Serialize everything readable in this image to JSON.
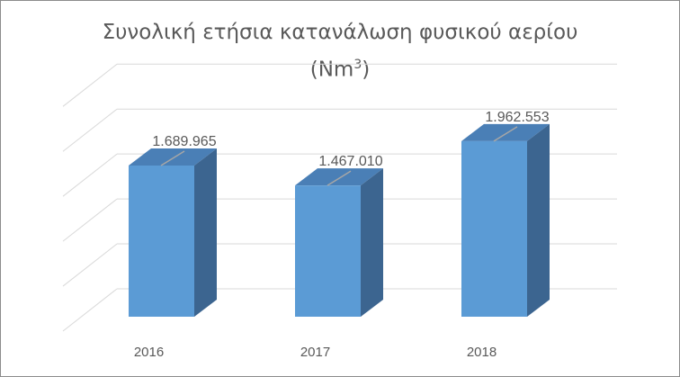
{
  "chart_data": {
    "type": "bar",
    "title_line1": "Συνολική ετήσια κατανάλωση φυσικού αερίου",
    "title_line2_prefix": "(Nm",
    "title_line2_sup": "3",
    "title_line2_suffix": ")",
    "categories": [
      "2016",
      "2017",
      "2018"
    ],
    "values": [
      1689965,
      1467010,
      1962553
    ],
    "value_labels": [
      "1.689.965",
      "1.467.010",
      "1.962.553"
    ],
    "ylim": [
      0,
      2500000
    ],
    "grid": true,
    "legend": "none",
    "colors": {
      "bar_front": "#5b9bd5",
      "bar_side": "#3c6590",
      "bar_top": "#4a7fb6",
      "grid": "#d9d9d9",
      "text": "#595959",
      "label_line": "#a6a6a6"
    }
  }
}
